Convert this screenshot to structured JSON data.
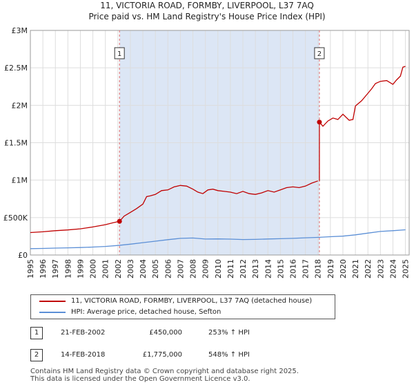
{
  "title": {
    "line1": "11, VICTORIA ROAD, FORMBY, LIVERPOOL, L37 7AQ",
    "line2": "Price paid vs. HM Land Registry's House Price Index (HPI)"
  },
  "colors": {
    "property": "#c00000",
    "hpi": "#5b8fd6",
    "highlight": "#dce6f5",
    "marker_line": "#e06666",
    "grid": "#dddddd"
  },
  "chart_data": {
    "type": "line",
    "ylim": [
      0,
      3000000
    ],
    "xlim": [
      1995,
      2025.3
    ],
    "y_ticks": [
      {
        "value": 0,
        "label": "£0"
      },
      {
        "value": 500000,
        "label": "£500K"
      },
      {
        "value": 1000000,
        "label": "£1M"
      },
      {
        "value": 1500000,
        "label": "£1.5M"
      },
      {
        "value": 2000000,
        "label": "£2M"
      },
      {
        "value": 2500000,
        "label": "£2.5M"
      },
      {
        "value": 3000000,
        "label": "£3M"
      }
    ],
    "x_ticks": [
      "1995",
      "1996",
      "1997",
      "1998",
      "1999",
      "2000",
      "2001",
      "2002",
      "2003",
      "2004",
      "2005",
      "2006",
      "2007",
      "2008",
      "2009",
      "2010",
      "2011",
      "2012",
      "2013",
      "2014",
      "2015",
      "2016",
      "2017",
      "2018",
      "2019",
      "2020",
      "2021",
      "2022",
      "2023",
      "2024",
      "2025"
    ],
    "grid": true,
    "highlight_range": [
      2002.13,
      2018.12
    ],
    "series": [
      {
        "name": "11, VICTORIA ROAD, FORMBY, LIVERPOOL, L37 7AQ (detached house)",
        "x": [
          1995.0,
          1996.0,
          1997.0,
          1998.0,
          1999.0,
          2000.0,
          2001.0,
          2001.6,
          2002.13,
          2002.5,
          2003.0,
          2003.5,
          2004.0,
          2004.3,
          2004.6,
          2005.0,
          2005.5,
          2006.0,
          2006.5,
          2007.0,
          2007.5,
          2008.0,
          2008.4,
          2008.8,
          2009.2,
          2009.6,
          2010.0,
          2010.5,
          2011.0,
          2011.5,
          2012.0,
          2012.5,
          2013.0,
          2013.5,
          2014.0,
          2014.5,
          2015.0,
          2015.5,
          2016.0,
          2016.5,
          2017.0,
          2017.5,
          2018.0
        ],
        "y": [
          300000,
          310000,
          325000,
          335000,
          350000,
          375000,
          405000,
          430000,
          450000,
          520000,
          570000,
          620000,
          680000,
          780000,
          790000,
          810000,
          860000,
          870000,
          910000,
          930000,
          920000,
          880000,
          840000,
          820000,
          870000,
          880000,
          860000,
          850000,
          840000,
          820000,
          850000,
          820000,
          810000,
          830000,
          860000,
          840000,
          870000,
          900000,
          910000,
          900000,
          920000,
          960000,
          990000
        ]
      },
      {
        "name": "",
        "x": [
          2018.12,
          2018.4,
          2018.8,
          2019.2,
          2019.6,
          2020.0,
          2020.5,
          2020.8,
          2021.0,
          2021.5,
          2022.0,
          2022.3,
          2022.6,
          2023.0,
          2023.5,
          2024.0,
          2024.3,
          2024.6,
          2024.8,
          2025.0
        ],
        "y": [
          1775000,
          1720000,
          1790000,
          1830000,
          1810000,
          1880000,
          1800000,
          1810000,
          1990000,
          2060000,
          2160000,
          2220000,
          2290000,
          2320000,
          2330000,
          2280000,
          2340000,
          2390000,
          2510000,
          2520000
        ]
      },
      {
        "name": "HPI: Average price, detached house, Sefton",
        "x": [
          1995.0,
          1996.0,
          1997.0,
          1998.0,
          1999.0,
          2000.0,
          2001.0,
          2002.0,
          2003.0,
          2004.0,
          2005.0,
          2006.0,
          2007.0,
          2008.0,
          2009.0,
          2010.0,
          2011.0,
          2012.0,
          2013.0,
          2014.0,
          2015.0,
          2016.0,
          2017.0,
          2018.0,
          2019.0,
          2020.0,
          2021.0,
          2022.0,
          2023.0,
          2024.0,
          2025.0
        ],
        "y": [
          85000,
          88000,
          92000,
          96000,
          100000,
          106000,
          114000,
          127000,
          145000,
          165000,
          185000,
          205000,
          222000,
          227000,
          213000,
          215000,
          212000,
          207000,
          209000,
          214000,
          218000,
          222000,
          230000,
          235000,
          245000,
          252000,
          270000,
          293000,
          315000,
          325000,
          337000
        ]
      }
    ],
    "transactions": [
      {
        "label": "1",
        "x": 2002.13,
        "y": 450000
      },
      {
        "label": "2",
        "x": 2018.12,
        "y": 1775000
      }
    ]
  },
  "legend": {
    "property_label": "11, VICTORIA ROAD, FORMBY, LIVERPOOL, L37 7AQ (detached house)",
    "hpi_label": "HPI: Average price, detached house, Sefton"
  },
  "transactions_table": [
    {
      "num": "1",
      "date": "21-FEB-2002",
      "price": "£450,000",
      "hpi": "253% ↑ HPI"
    },
    {
      "num": "2",
      "date": "14-FEB-2018",
      "price": "£1,775,000",
      "hpi": "548% ↑ HPI"
    }
  ],
  "footer": {
    "line1": "Contains HM Land Registry data © Crown copyright and database right 2025.",
    "line2": "This data is licensed under the Open Government Licence v3.0."
  }
}
